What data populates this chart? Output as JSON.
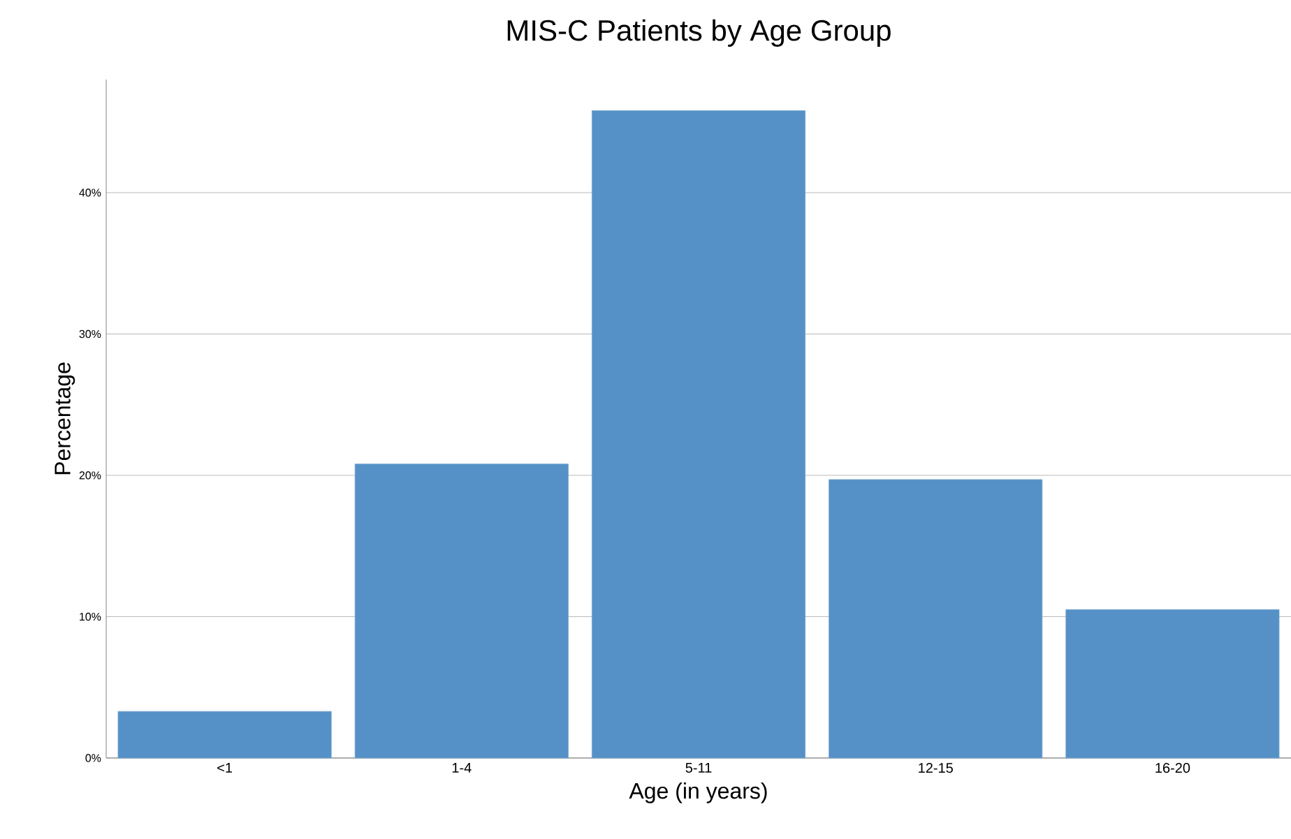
{
  "chart_data": {
    "type": "bar",
    "title": "MIS-C Patients by Age Group",
    "xlabel": "Age (in years)",
    "ylabel": "Percentage",
    "categories": [
      "<1",
      "1-4",
      "5-11",
      "12-15",
      "16-20"
    ],
    "values": [
      3.3,
      20.8,
      45.8,
      19.7,
      10.5
    ],
    "color": "#5591c6",
    "ylim": [
      0,
      48
    ],
    "yticks": [
      {
        "value": 0,
        "label": "0%"
      },
      {
        "value": 10,
        "label": "10%"
      },
      {
        "value": 20,
        "label": "20%"
      },
      {
        "value": 30,
        "label": "30%"
      },
      {
        "value": 40,
        "label": "40%"
      }
    ],
    "grid": "y"
  }
}
